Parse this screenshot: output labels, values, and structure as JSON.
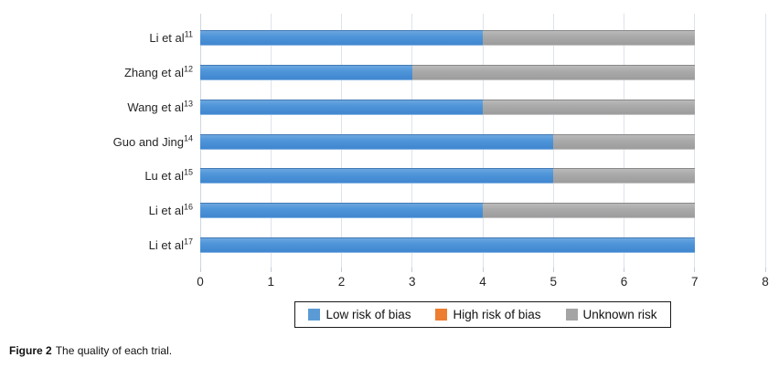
{
  "figure": {
    "caption_label": "Figure 2",
    "caption_text": "The quality of each trial."
  },
  "chart_data": {
    "type": "bar",
    "orientation": "horizontal",
    "stacked": true,
    "title": "",
    "xlabel": "",
    "ylabel": "",
    "categories": [
      {
        "label": "Li et al",
        "superscript": "11"
      },
      {
        "label": "Zhang et al",
        "superscript": "12"
      },
      {
        "label": "Wang et al",
        "superscript": "13"
      },
      {
        "label": "Guo and Jing",
        "superscript": "14"
      },
      {
        "label": "Lu et al",
        "superscript": "15"
      },
      {
        "label": "Li et al",
        "superscript": "16"
      },
      {
        "label": "Li et al",
        "superscript": "17"
      }
    ],
    "series": [
      {
        "name": "Low risk of bias",
        "color": "#5b9bd5",
        "values": [
          4,
          3,
          4,
          5,
          5,
          4,
          7
        ]
      },
      {
        "name": "High risk of bias",
        "color": "#ed7d31",
        "values": [
          0,
          0,
          0,
          0,
          0,
          0,
          0
        ]
      },
      {
        "name": "Unknown risk",
        "color": "#a5a5a5",
        "values": [
          3,
          4,
          3,
          2,
          2,
          3,
          0
        ]
      }
    ],
    "xlim": [
      0,
      8
    ],
    "x_ticks": [
      0,
      1,
      2,
      3,
      4,
      5,
      6,
      7,
      8
    ],
    "grid": true,
    "gridline_color": "#dde3ed",
    "legend_position": "bottom-center"
  }
}
